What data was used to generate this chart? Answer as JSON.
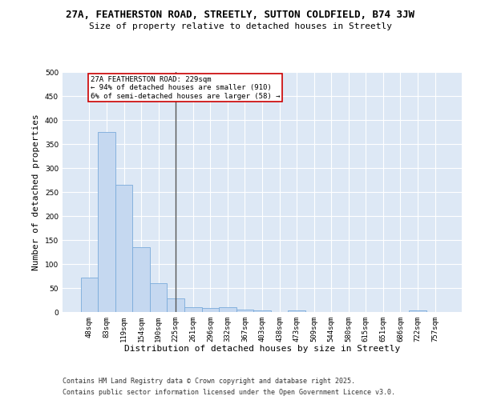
{
  "title_line1": "27A, FEATHERSTON ROAD, STREETLY, SUTTON COLDFIELD, B74 3JW",
  "title_line2": "Size of property relative to detached houses in Streetly",
  "xlabel": "Distribution of detached houses by size in Streetly",
  "ylabel": "Number of detached properties",
  "categories": [
    "48sqm",
    "83sqm",
    "119sqm",
    "154sqm",
    "190sqm",
    "225sqm",
    "261sqm",
    "296sqm",
    "332sqm",
    "367sqm",
    "403sqm",
    "438sqm",
    "473sqm",
    "509sqm",
    "544sqm",
    "580sqm",
    "615sqm",
    "651sqm",
    "686sqm",
    "722sqm",
    "757sqm"
  ],
  "values": [
    72,
    375,
    265,
    135,
    60,
    28,
    10,
    8,
    10,
    5,
    4,
    0,
    3,
    0,
    0,
    0,
    0,
    0,
    0,
    3,
    0
  ],
  "bar_color": "#c5d8f0",
  "bar_edge_color": "#7aabdb",
  "vline_x_index": 5,
  "vline_color": "#555555",
  "annotation_text": "27A FEATHERSTON ROAD: 229sqm\n← 94% of detached houses are smaller (910)\n6% of semi-detached houses are larger (58) →",
  "annotation_box_facecolor": "#ffffff",
  "annotation_box_edgecolor": "#cc0000",
  "ylim": [
    0,
    500
  ],
  "yticks": [
    0,
    50,
    100,
    150,
    200,
    250,
    300,
    350,
    400,
    450,
    500
  ],
  "background_color": "#dde8f5",
  "grid_color": "#ffffff",
  "fig_facecolor": "#ffffff",
  "footer_line1": "Contains HM Land Registry data © Crown copyright and database right 2025.",
  "footer_line2": "Contains public sector information licensed under the Open Government Licence v3.0.",
  "title_fontsize": 9,
  "subtitle_fontsize": 8,
  "axis_label_fontsize": 8,
  "tick_fontsize": 6.5,
  "annotation_fontsize": 6.5,
  "footer_fontsize": 6
}
